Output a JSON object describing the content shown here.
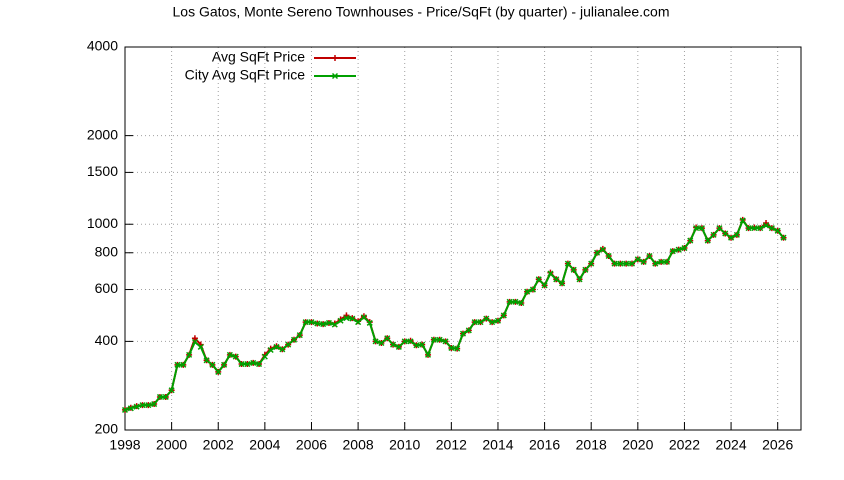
{
  "chart_data": {
    "type": "line",
    "title": "Los Gatos, Monte Sereno Townhouses - Price/SqFt (by quarter) - julianalee.com",
    "x": [
      1998,
      1998.25,
      1998.5,
      1998.75,
      1999,
      1999.25,
      1999.5,
      1999.75,
      2000,
      2000.25,
      2000.5,
      2000.75,
      2001,
      2001.25,
      2001.5,
      2001.75,
      2002,
      2002.25,
      2002.5,
      2002.75,
      2003,
      2003.25,
      2003.5,
      2003.75,
      2004,
      2004.25,
      2004.5,
      2004.75,
      2005,
      2005.25,
      2005.5,
      2005.75,
      2006,
      2006.25,
      2006.5,
      2006.75,
      2007,
      2007.25,
      2007.5,
      2007.75,
      2008,
      2008.25,
      2008.5,
      2008.75,
      2009,
      2009.25,
      2009.5,
      2009.75,
      2010,
      2010.25,
      2010.5,
      2010.75,
      2011,
      2011.25,
      2011.5,
      2011.75,
      2012,
      2012.25,
      2012.5,
      2012.75,
      2013,
      2013.25,
      2013.5,
      2013.75,
      2014,
      2014.25,
      2014.5,
      2014.75,
      2015,
      2015.25,
      2015.5,
      2015.75,
      2016,
      2016.25,
      2016.5,
      2016.75,
      2017,
      2017.25,
      2017.5,
      2017.75,
      2018,
      2018.25,
      2018.5,
      2018.75,
      2019,
      2019.25,
      2019.5,
      2019.75,
      2020,
      2020.25,
      2020.5,
      2020.75,
      2021,
      2021.25,
      2021.5,
      2021.75,
      2022,
      2022.25,
      2022.5,
      2022.75,
      2023,
      2023.25,
      2023.5,
      2023.75,
      2024,
      2024.25,
      2024.5,
      2024.75,
      2025,
      2025.25,
      2025.5,
      2025.75,
      2026,
      2026.25
    ],
    "series": [
      {
        "name": "Avg SqFt Price",
        "color": "#c00000",
        "marker": "plus",
        "values": [
          234,
          238,
          241,
          243,
          243,
          245,
          259,
          259,
          273,
          333,
          333,
          360,
          410,
          390,
          345,
          333,
          315,
          333,
          360,
          355,
          335,
          335,
          338,
          335,
          360,
          378,
          385,
          376,
          390,
          405,
          420,
          465,
          465,
          460,
          458,
          462,
          460,
          475,
          490,
          480,
          468,
          487,
          465,
          400,
          395,
          410,
          390,
          383,
          400,
          402,
          388,
          390,
          360,
          405,
          405,
          400,
          380,
          378,
          425,
          436,
          465,
          465,
          478,
          465,
          470,
          490,
          545,
          545,
          540,
          590,
          600,
          650,
          620,
          685,
          650,
          630,
          735,
          700,
          650,
          700,
          735,
          800,
          825,
          780,
          735,
          735,
          735,
          735,
          760,
          745,
          780,
          735,
          745,
          745,
          810,
          820,
          830,
          880,
          975,
          970,
          880,
          920,
          970,
          930,
          900,
          920,
          1035,
          970,
          975,
          970,
          1010,
          970,
          950,
          900
        ]
      },
      {
        "name": "City Avg SqFt Price",
        "color": "#00a000",
        "marker": "cross",
        "values": [
          234,
          237,
          240,
          243,
          243,
          245,
          259,
          259,
          273,
          333,
          333,
          360,
          398,
          383,
          345,
          333,
          315,
          333,
          360,
          355,
          335,
          335,
          338,
          335,
          355,
          374,
          383,
          376,
          390,
          405,
          420,
          465,
          465,
          460,
          458,
          462,
          456,
          470,
          480,
          478,
          465,
          483,
          462,
          400,
          395,
          410,
          390,
          383,
          400,
          400,
          388,
          390,
          360,
          405,
          405,
          400,
          380,
          378,
          425,
          436,
          465,
          465,
          478,
          465,
          470,
          490,
          545,
          545,
          540,
          590,
          600,
          650,
          620,
          680,
          650,
          630,
          735,
          700,
          650,
          700,
          735,
          800,
          820,
          780,
          735,
          735,
          735,
          735,
          760,
          745,
          780,
          735,
          745,
          745,
          810,
          820,
          830,
          880,
          970,
          970,
          880,
          920,
          970,
          930,
          900,
          920,
          1030,
          970,
          970,
          970,
          990,
          970,
          950,
          900
        ]
      }
    ],
    "xlim": [
      1998,
      2027
    ],
    "ylim": [
      200,
      4000
    ],
    "xticks": [
      1998,
      2000,
      2002,
      2004,
      2006,
      2008,
      2010,
      2012,
      2014,
      2016,
      2018,
      2020,
      2022,
      2024,
      2026
    ],
    "yticks": [
      200,
      400,
      600,
      800,
      1000,
      1500,
      2000,
      4000
    ],
    "log_scale_y": true,
    "grid": true,
    "legend": "top-left"
  }
}
